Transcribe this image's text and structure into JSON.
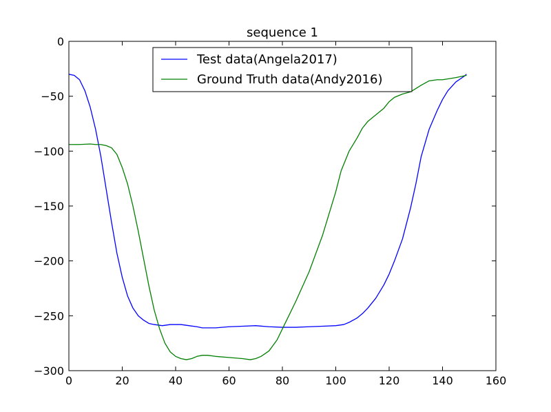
{
  "chart_data": {
    "type": "line",
    "title": "sequence 1",
    "xlabel": "",
    "ylabel": "",
    "xlim": [
      0,
      160
    ],
    "ylim": [
      -300,
      0
    ],
    "xticks": [
      0,
      20,
      40,
      60,
      80,
      100,
      120,
      140,
      160
    ],
    "yticks": [
      0,
      -50,
      -100,
      -150,
      -200,
      -250,
      -300
    ],
    "xtick_labels": [
      "0",
      "20",
      "40",
      "60",
      "80",
      "100",
      "120",
      "140",
      "160"
    ],
    "ytick_labels": [
      "0",
      "−50",
      "−100",
      "−150",
      "−200",
      "−250",
      "−300"
    ],
    "grid": false,
    "legend_position": "top-center",
    "series": [
      {
        "name": "Test data(Angela2017)",
        "color": "#0000ff",
        "x": [
          0,
          2,
          4,
          6,
          8,
          10,
          12,
          14,
          16,
          18,
          20,
          22,
          24,
          26,
          28,
          30,
          32,
          35,
          38,
          40,
          42,
          45,
          48,
          50,
          52,
          55,
          60,
          65,
          70,
          75,
          80,
          85,
          90,
          95,
          100,
          103,
          105,
          108,
          110,
          112,
          115,
          118,
          120,
          122,
          125,
          128,
          130,
          132,
          135,
          138,
          140,
          142,
          145,
          148,
          149
        ],
        "y": [
          -30,
          -31,
          -35,
          -45,
          -60,
          -80,
          -105,
          -135,
          -165,
          -193,
          -215,
          -232,
          -243,
          -250,
          -254,
          -257,
          -258,
          -259,
          -258,
          -258,
          -258,
          -259,
          -260,
          -261,
          -261,
          -261,
          -260,
          -259.5,
          -259,
          -260,
          -260.5,
          -260.5,
          -260,
          -259.5,
          -259,
          -258,
          -256,
          -252,
          -248,
          -243,
          -234,
          -222,
          -212,
          -200,
          -180,
          -152,
          -130,
          -105,
          -80,
          -63,
          -53,
          -45,
          -37,
          -32,
          -30
        ]
      },
      {
        "name": "Ground Truth data(Andy2016)",
        "color": "#007f00",
        "x": [
          0,
          4,
          8,
          10,
          12,
          14,
          16,
          18,
          20,
          22,
          24,
          26,
          28,
          30,
          32,
          34,
          36,
          38,
          40,
          42,
          44,
          46,
          48,
          50,
          52,
          55,
          60,
          65,
          68,
          70,
          72,
          75,
          78,
          80,
          85,
          90,
          95,
          100,
          102,
          105,
          108,
          110,
          112,
          115,
          118,
          120,
          122,
          125,
          128,
          130,
          132,
          135,
          138,
          140,
          145,
          149
        ],
        "y": [
          -94,
          -94,
          -93.5,
          -94,
          -94,
          -95,
          -97,
          -103,
          -115,
          -130,
          -150,
          -173,
          -198,
          -223,
          -245,
          -262,
          -275,
          -283,
          -287,
          -289,
          -290,
          -289,
          -287,
          -286,
          -286,
          -287,
          -288,
          -289,
          -290,
          -289,
          -287,
          -282,
          -272,
          -262,
          -237,
          -210,
          -177,
          -137,
          -118,
          -100,
          -88,
          -79,
          -73,
          -67,
          -61,
          -55,
          -51,
          -48,
          -46,
          -43,
          -40,
          -36,
          -35,
          -35,
          -33,
          -31
        ]
      }
    ]
  }
}
